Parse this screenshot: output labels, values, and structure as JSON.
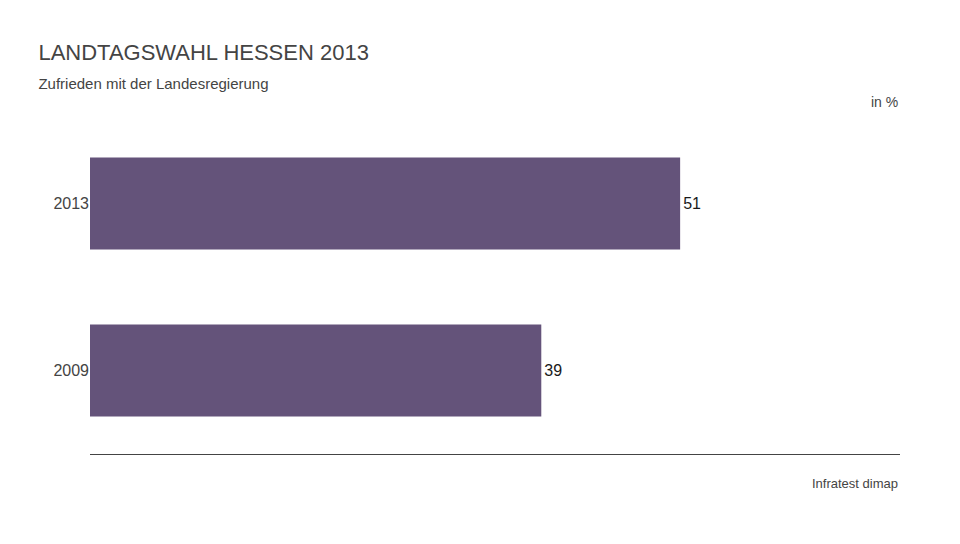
{
  "chart_data": {
    "type": "bar",
    "title": "LANDTAGSWAHL HESSEN 2013",
    "subtitle": "Zufrieden mit der Landesregierung",
    "annotations": [
      "in %",
      "Infratest dimap"
    ],
    "categories": [
      "2013",
      "2009"
    ],
    "values": [
      51,
      39
    ],
    "color": "#64537a",
    "orientation": "horizontal",
    "xlim": [
      0,
      70
    ],
    "grid": false,
    "data_labels": true,
    "tick_labels": "y"
  }
}
